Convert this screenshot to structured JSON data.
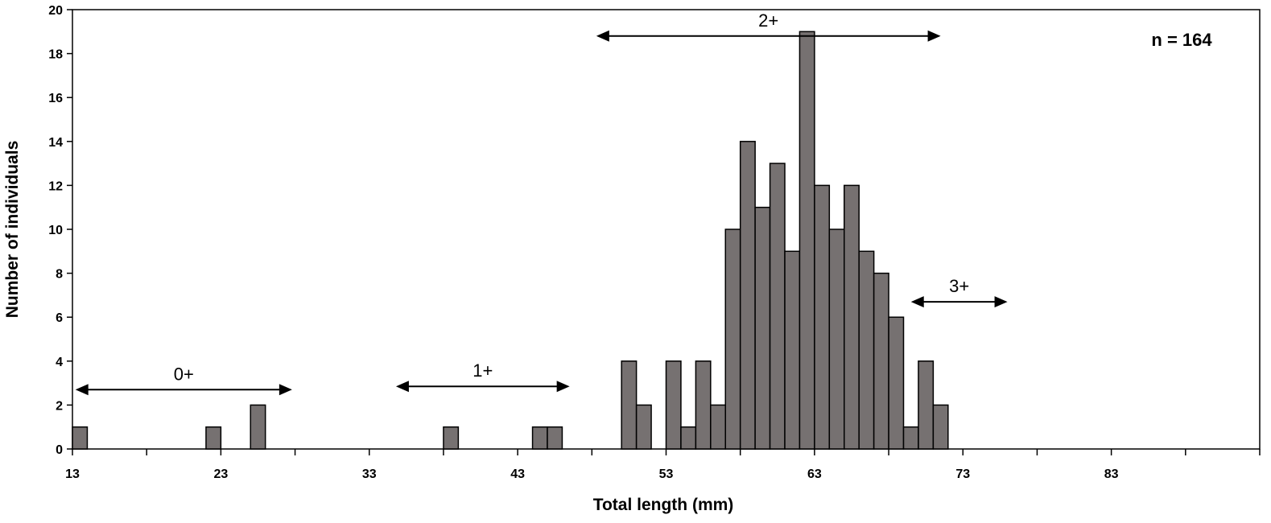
{
  "chart_data": {
    "type": "bar",
    "title": "",
    "xlabel": "Total length (mm)",
    "ylabel": "Number of individuals",
    "xlim": [
      13,
      93
    ],
    "ylim": [
      0,
      20
    ],
    "bin_width": 1,
    "x_ticks": [
      13,
      23,
      33,
      43,
      53,
      63,
      73,
      83
    ],
    "y_ticks": [
      0,
      2,
      4,
      6,
      8,
      10,
      12,
      14,
      16,
      18,
      20
    ],
    "bars": [
      {
        "x": 13,
        "value": 1
      },
      {
        "x": 22,
        "value": 1
      },
      {
        "x": 25,
        "value": 2
      },
      {
        "x": 38,
        "value": 1
      },
      {
        "x": 44,
        "value": 1
      },
      {
        "x": 45,
        "value": 1
      },
      {
        "x": 50,
        "value": 4
      },
      {
        "x": 51,
        "value": 2
      },
      {
        "x": 53,
        "value": 4
      },
      {
        "x": 54,
        "value": 1
      },
      {
        "x": 55,
        "value": 4
      },
      {
        "x": 56,
        "value": 2
      },
      {
        "x": 57,
        "value": 10
      },
      {
        "x": 58,
        "value": 14
      },
      {
        "x": 59,
        "value": 11
      },
      {
        "x": 60,
        "value": 13
      },
      {
        "x": 61,
        "value": 9
      },
      {
        "x": 62,
        "value": 19
      },
      {
        "x": 63,
        "value": 12
      },
      {
        "x": 64,
        "value": 10
      },
      {
        "x": 65,
        "value": 12
      },
      {
        "x": 66,
        "value": 9
      },
      {
        "x": 67,
        "value": 8
      },
      {
        "x": 68,
        "value": 6
      },
      {
        "x": 69,
        "value": 1
      },
      {
        "x": 70,
        "value": 4
      },
      {
        "x": 71,
        "value": 2
      }
    ],
    "annotations": [
      {
        "label": "0+",
        "from": 13.2,
        "to": 27.8,
        "y": 2.7
      },
      {
        "label": "1+",
        "from": 34.8,
        "to": 46.5,
        "y": 2.85
      },
      {
        "label": "2+",
        "from": 48.3,
        "to": 71.5,
        "y": 18.8
      },
      {
        "label": "3+",
        "from": 69.5,
        "to": 76.0,
        "y": 6.7
      }
    ],
    "sample_size_label": "n = 164",
    "bar_color": "#767171"
  }
}
